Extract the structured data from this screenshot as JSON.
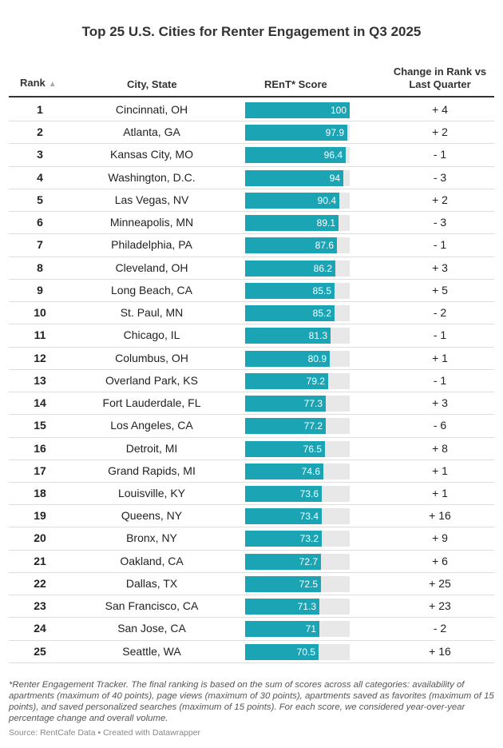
{
  "title": "Top 25 U.S. Cities for Renter Engagement in Q3 2025",
  "headers": {
    "rank": "Rank",
    "sort_icon": "▲",
    "city": "City, State",
    "score": "REnT* Score",
    "change": "Change in Rank vs Last Quarter"
  },
  "colors": {
    "bar": "#1aa4b4",
    "track": "#e8e8e8"
  },
  "chart_data": {
    "type": "table",
    "title": "Top 25 U.S. Cities for Renter Engagement in Q3 2025",
    "columns": [
      "Rank",
      "City, State",
      "REnT* Score",
      "Change in Rank vs Last Quarter"
    ],
    "score_range": [
      0,
      100
    ],
    "rows": [
      {
        "rank": "1",
        "city": "Cincinnati, OH",
        "score": 100,
        "change": "+ 4"
      },
      {
        "rank": "2",
        "city": "Atlanta, GA",
        "score": 97.9,
        "change": "+ 2"
      },
      {
        "rank": "3",
        "city": "Kansas City, MO",
        "score": 96.4,
        "change": "- 1"
      },
      {
        "rank": "4",
        "city": "Washington, D.C.",
        "score": 94,
        "change": "- 3"
      },
      {
        "rank": "5",
        "city": "Las Vegas, NV",
        "score": 90.4,
        "change": "+ 2"
      },
      {
        "rank": "6",
        "city": "Minneapolis, MN",
        "score": 89.1,
        "change": "- 3"
      },
      {
        "rank": "7",
        "city": "Philadelphia, PA",
        "score": 87.6,
        "change": "- 1"
      },
      {
        "rank": "8",
        "city": "Cleveland, OH",
        "score": 86.2,
        "change": "+ 3"
      },
      {
        "rank": "9",
        "city": "Long Beach, CA",
        "score": 85.5,
        "change": "+ 5"
      },
      {
        "rank": "10",
        "city": "St. Paul, MN",
        "score": 85.2,
        "change": "- 2"
      },
      {
        "rank": "11",
        "city": "Chicago, IL",
        "score": 81.3,
        "change": "- 1"
      },
      {
        "rank": "12",
        "city": "Columbus, OH",
        "score": 80.9,
        "change": "+ 1"
      },
      {
        "rank": "13",
        "city": "Overland Park, KS",
        "score": 79.2,
        "change": "- 1"
      },
      {
        "rank": "14",
        "city": "Fort Lauderdale, FL",
        "score": 77.3,
        "change": "+ 3"
      },
      {
        "rank": "15",
        "city": "Los Angeles, CA",
        "score": 77.2,
        "change": "- 6"
      },
      {
        "rank": "16",
        "city": "Detroit, MI",
        "score": 76.5,
        "change": "+ 8"
      },
      {
        "rank": "17",
        "city": "Grand Rapids, MI",
        "score": 74.6,
        "change": "+ 1"
      },
      {
        "rank": "18",
        "city": "Louisville, KY",
        "score": 73.6,
        "change": "+ 1"
      },
      {
        "rank": "19",
        "city": "Queens, NY",
        "score": 73.4,
        "change": "+ 16"
      },
      {
        "rank": "20",
        "city": "Bronx, NY",
        "score": 73.2,
        "change": "+ 9"
      },
      {
        "rank": "21",
        "city": "Oakland, CA",
        "score": 72.7,
        "change": "+ 6"
      },
      {
        "rank": "22",
        "city": "Dallas, TX",
        "score": 72.5,
        "change": "+ 25"
      },
      {
        "rank": "23",
        "city": "San Francisco, CA",
        "score": 71.3,
        "change": "+ 23"
      },
      {
        "rank": "24",
        "city": "San Jose, CA",
        "score": 71,
        "change": "- 2"
      },
      {
        "rank": "25",
        "city": "Seattle, WA",
        "score": 70.5,
        "change": "+ 16"
      }
    ]
  },
  "footnote": "*Renter Engagement Tracker. The final ranking is based on the sum of scores across all categories: availability of apartments (maximum of 40 points), page views (maximum of 30 points), apartments saved as favorites (maximum of 15 points), and saved personalized searches (maximum of 15 points). For each score, we considered year-over-year percentage change and overall volume.",
  "source": "Source: RentCafe Data • Created with Datawrapper"
}
